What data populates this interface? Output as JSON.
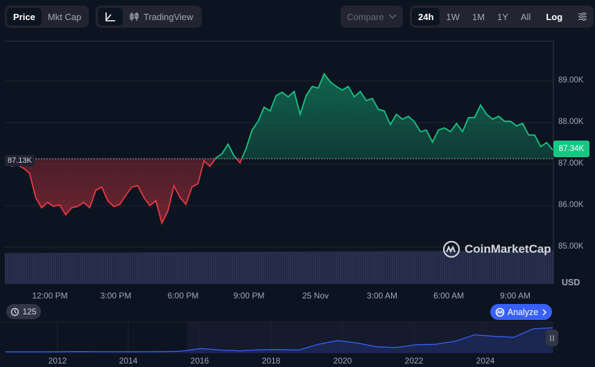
{
  "toolbar": {
    "price": "Price",
    "mkt_cap": "Mkt Cap",
    "line_icon": "line-chart-icon",
    "tradingview": "TradingView",
    "compare": "Compare",
    "ranges": [
      "24h",
      "1W",
      "1M",
      "1Y",
      "All"
    ],
    "active_range": "24h",
    "log": "Log",
    "settings_icon": "sliders-icon"
  },
  "colors": {
    "up": "#16c784",
    "down": "#ea3943",
    "background": "#0d1421",
    "accent": "#3861fb"
  },
  "chart_data": {
    "type": "line",
    "y_ticks": [
      "89.00K",
      "88.00K",
      "87.00K",
      "86.00K",
      "85.00K"
    ],
    "y_tick_values": [
      89,
      88,
      87,
      86,
      85
    ],
    "x_ticks": [
      "12:00 PM",
      "3:00 PM",
      "6:00 PM",
      "9:00 PM",
      "25 Nov",
      "3:00 AM",
      "6:00 AM",
      "9:00 AM"
    ],
    "unit": "USD",
    "baseline": 87.13,
    "baseline_label": "87.13K",
    "current": 87.34,
    "current_label": "87.34K",
    "price_k": [
      87.02,
      86.95,
      86.98,
      86.9,
      86.78,
      86.2,
      85.95,
      86.08,
      85.98,
      86.02,
      85.78,
      85.95,
      85.98,
      86.08,
      85.95,
      86.37,
      86.45,
      86.12,
      85.98,
      86.03,
      86.25,
      86.45,
      86.48,
      86.2,
      86.0,
      86.12,
      85.58,
      85.87,
      86.48,
      86.2,
      86.03,
      86.45,
      86.53,
      87.08,
      86.95,
      87.15,
      87.25,
      87.48,
      87.2,
      87.03,
      87.37,
      87.82,
      88.03,
      88.37,
      88.28,
      88.65,
      88.73,
      88.62,
      88.75,
      88.2,
      88.65,
      88.87,
      88.83,
      89.17,
      88.98,
      88.87,
      88.78,
      88.87,
      88.62,
      88.75,
      88.53,
      88.58,
      88.32,
      88.28,
      87.95,
      88.2,
      88.08,
      88.15,
      88.02,
      87.78,
      87.82,
      87.53,
      87.82,
      87.87,
      87.78,
      87.98,
      87.78,
      88.12,
      88.12,
      88.42,
      88.2,
      88.08,
      88.15,
      88.03,
      88.03,
      87.92,
      87.98,
      87.7,
      87.7,
      87.42,
      87.52,
      87.34
    ]
  },
  "watermark": "CoinMarketCap",
  "badge": {
    "count": "125"
  },
  "analyze": "Analyze",
  "navigator": {
    "years": [
      "2012",
      "2014",
      "2016",
      "2018",
      "2020",
      "2022",
      "2024"
    ],
    "series_usd": [
      0,
      5,
      100,
      500,
      700,
      400,
      300,
      350,
      650,
      2500,
      13000,
      7000,
      3800,
      8000,
      9000,
      7000,
      30000,
      45000,
      35000,
      20000,
      17000,
      28000,
      30000,
      42000,
      68000,
      62000,
      58000,
      92000,
      96000
    ]
  }
}
